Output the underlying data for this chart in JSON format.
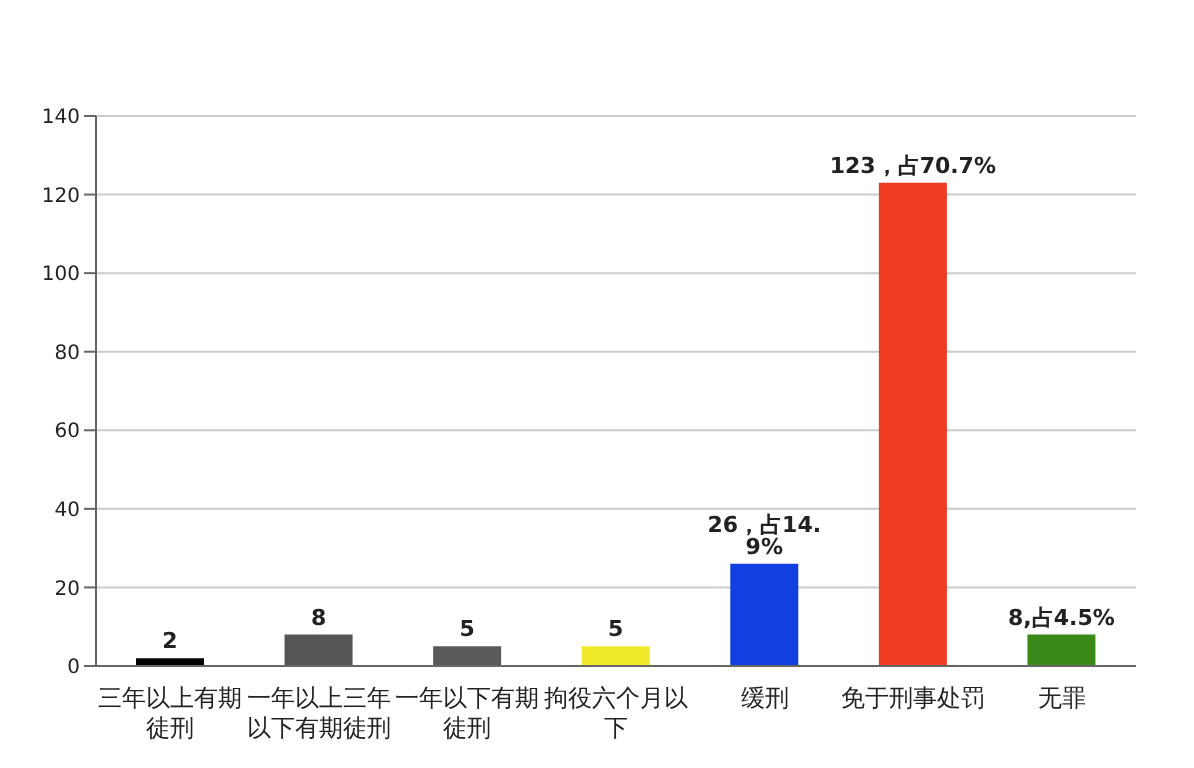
{
  "chart_data": {
    "type": "bar",
    "categories": [
      "三年以上有期徒刑",
      "一年以上三年以下有期徒刑",
      "一年以下有期徒刑",
      "拘役六个月以下",
      "缓刑",
      "免于刑事处罚",
      "无罪"
    ],
    "values": [
      2,
      8,
      5,
      5,
      26,
      123,
      8
    ],
    "colors": [
      "#000000",
      "#555555",
      "#5a5a5a",
      "#f0e82a",
      "#1240e0",
      "#f03a22",
      "#3a8a1a"
    ],
    "value_labels": [
      "2",
      "8",
      "5",
      "5",
      "26，占14. 9%",
      "123，占70.7%",
      "8,占4.5%"
    ],
    "ylim": [
      0,
      140
    ],
    "yticks": [
      0,
      20,
      40,
      60,
      80,
      100,
      120,
      140
    ],
    "grid": "y"
  }
}
